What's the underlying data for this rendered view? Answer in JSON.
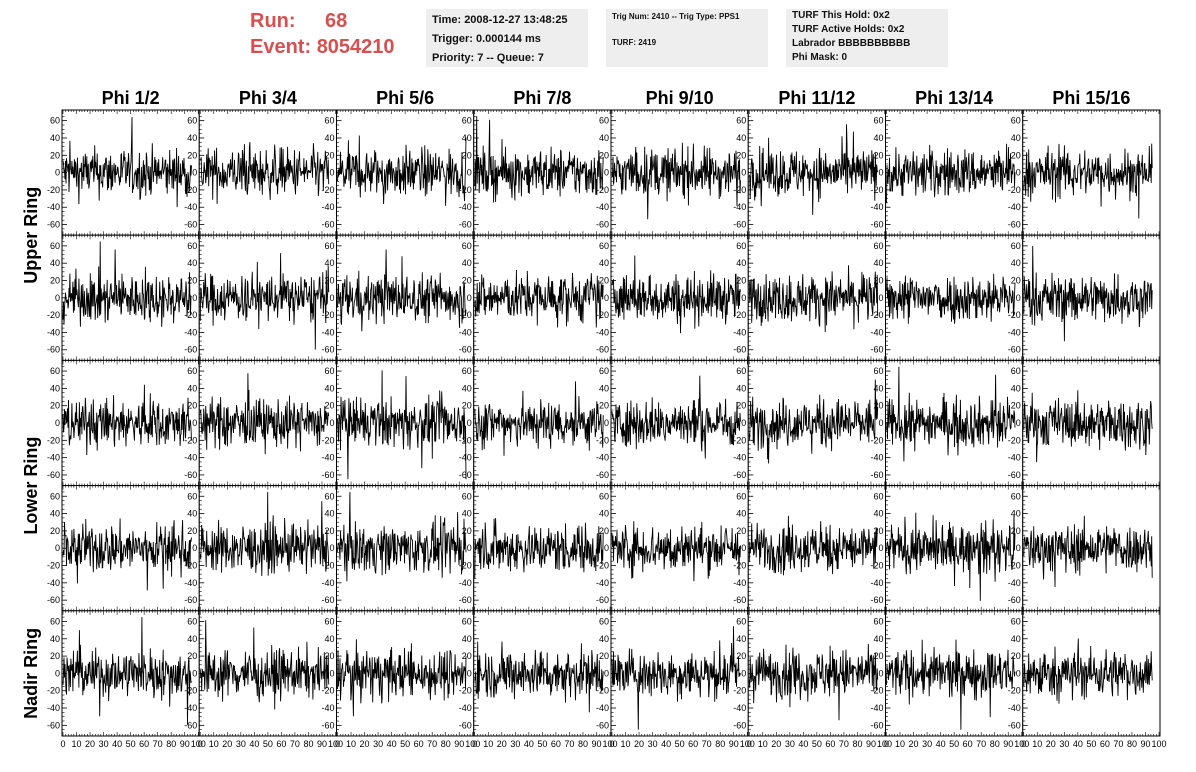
{
  "header": {
    "run_label": "Run:",
    "run_value": "68",
    "event_label": "Event:",
    "event_value": "8054210",
    "box1": [
      "Time: 2008-12-27 13:48:25",
      "Trigger: 0.000144 ms",
      "Priority: 7 -- Queue: 7"
    ],
    "box2": [
      "Trig Num: 2410 -- Trig Type: PPS1",
      "TURF: 2419"
    ],
    "box3": [
      "TURF This Hold: 0x2",
      "TURF Active Holds: 0x2",
      "Labrador BBBBBBBBBB",
      "Phi Mask: 0"
    ]
  },
  "colors": {
    "accent": "#d94f4f",
    "box_bg": "#eeeeee",
    "trace": "#000000"
  },
  "chart_data": {
    "type": "line",
    "columns": [
      "Phi 1/2",
      "Phi 3/4",
      "Phi 5/6",
      "Phi 7/8",
      "Phi 9/10",
      "Phi 11/12",
      "Phi 13/14",
      "Phi 15/16"
    ],
    "ring_labels": [
      {
        "label": "Upper Ring",
        "rows": [
          0,
          1
        ]
      },
      {
        "label": "Lower Ring",
        "rows": [
          2,
          3
        ]
      },
      {
        "label": "Nadir Ring",
        "rows": [
          4,
          4
        ]
      }
    ],
    "rows": 5,
    "ylim": [
      -70,
      70
    ],
    "yticks": [
      -60,
      -40,
      -20,
      0,
      20,
      40,
      60
    ],
    "xlim": [
      0,
      100
    ],
    "xticks": [
      0,
      10,
      20,
      30,
      40,
      50,
      60,
      70,
      80,
      90,
      100
    ],
    "xtick_labels": [
      "0",
      "10",
      "20",
      "30",
      "40",
      "50",
      "60",
      "70",
      "80",
      "90",
      "100"
    ],
    "samples_per_trace": 260,
    "x_trace_range": [
      0,
      95
    ],
    "noise_amplitude": 14,
    "grid": false
  }
}
